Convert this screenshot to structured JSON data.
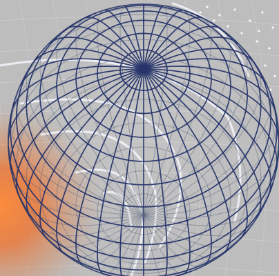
{
  "title": "",
  "colors": {
    "background": "#bdbdbd",
    "wireframe": "#26346a",
    "wireframe_back": "#59637f",
    "arcs": "#f4f6fb",
    "glow": "#ff7a2a"
  },
  "globe": {
    "meridians": 36,
    "parallel_latitudes_deg": [
      -80,
      -70,
      -60,
      -50,
      -40,
      -30,
      -20,
      -10,
      0,
      10,
      20,
      30,
      40,
      50,
      60,
      70,
      80
    ],
    "tilt_deg": 58
  }
}
